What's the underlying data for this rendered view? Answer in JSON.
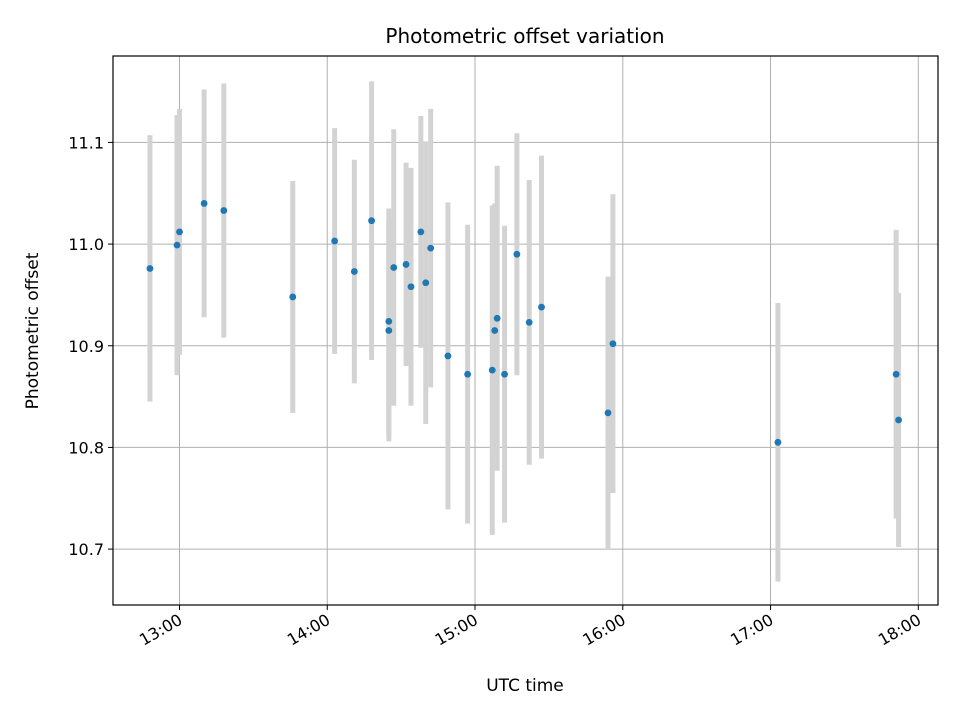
{
  "chart_data": {
    "type": "scatter",
    "title": "Photometric offset variation",
    "xlabel": "UTC time",
    "ylabel": "Photometric offset",
    "x_ticks": [
      "13:00",
      "14:00",
      "15:00",
      "16:00",
      "17:00",
      "18:00"
    ],
    "y_ticks": [
      "10.7",
      "10.8",
      "10.9",
      "11.0",
      "11.1"
    ],
    "xlim": [
      "12:33",
      "18:08"
    ],
    "ylim": [
      10.645,
      11.185
    ],
    "grid": true,
    "colors": {
      "point": "#1f77b4",
      "errorbar": "#d3d3d3",
      "grid": "#b0b0b0"
    },
    "points": [
      {
        "x": "12:48",
        "y": 10.976,
        "err": 0.131
      },
      {
        "x": "12:59",
        "y": 10.999,
        "err": 0.128
      },
      {
        "x": "13:00",
        "y": 11.012,
        "err": 0.121
      },
      {
        "x": "13:10",
        "y": 11.04,
        "err": 0.112
      },
      {
        "x": "13:18",
        "y": 11.033,
        "err": 0.125
      },
      {
        "x": "13:46",
        "y": 10.948,
        "err": 0.114
      },
      {
        "x": "14:03",
        "y": 11.003,
        "err": 0.111
      },
      {
        "x": "14:11",
        "y": 10.973,
        "err": 0.11
      },
      {
        "x": "14:18",
        "y": 11.023,
        "err": 0.137
      },
      {
        "x": "14:25",
        "y": 10.915,
        "err": 0.109
      },
      {
        "x": "14:25",
        "y": 10.924,
        "err": 0.111
      },
      {
        "x": "14:27",
        "y": 10.977,
        "err": 0.136
      },
      {
        "x": "14:32",
        "y": 10.98,
        "err": 0.1
      },
      {
        "x": "14:34",
        "y": 10.958,
        "err": 0.117
      },
      {
        "x": "14:38",
        "y": 11.012,
        "err": 0.114
      },
      {
        "x": "14:40",
        "y": 10.962,
        "err": 0.139
      },
      {
        "x": "14:42",
        "y": 10.996,
        "err": 0.137
      },
      {
        "x": "14:49",
        "y": 10.89,
        "err": 0.151
      },
      {
        "x": "14:57",
        "y": 10.872,
        "err": 0.147
      },
      {
        "x": "15:07",
        "y": 10.876,
        "err": 0.162
      },
      {
        "x": "15:08",
        "y": 10.915,
        "err": 0.125
      },
      {
        "x": "15:09",
        "y": 10.927,
        "err": 0.15
      },
      {
        "x": "15:12",
        "y": 10.872,
        "err": 0.146
      },
      {
        "x": "15:17",
        "y": 10.99,
        "err": 0.119
      },
      {
        "x": "15:22",
        "y": 10.923,
        "err": 0.14
      },
      {
        "x": "15:27",
        "y": 10.938,
        "err": 0.149
      },
      {
        "x": "15:54",
        "y": 10.834,
        "err": 0.134
      },
      {
        "x": "15:56",
        "y": 10.902,
        "err": 0.147
      },
      {
        "x": "17:03",
        "y": 10.805,
        "err": 0.137
      },
      {
        "x": "17:51",
        "y": 10.872,
        "err": 0.142
      },
      {
        "x": "17:52",
        "y": 10.827,
        "err": 0.125
      }
    ]
  }
}
